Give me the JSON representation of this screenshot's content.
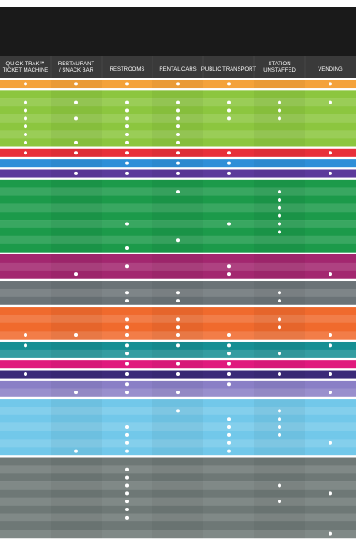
{
  "header": {
    "columns": [
      "QUICK-TRAK℠ TICKET MACHINE",
      "RESTAURANT / SNACK BAR",
      "RESTROOMS",
      "RENTAL CARS",
      "PUBLIC TRANSPORT",
      "STATION UNSTAFFED",
      "VENDING"
    ]
  },
  "table": {
    "groups": [
      {
        "color": "#f4a23a",
        "rows": [
          [
            true,
            true,
            true,
            true,
            true,
            false,
            true
          ]
        ]
      },
      {
        "color": "#8cc63f",
        "rows": [
          [
            false,
            false,
            false,
            false,
            false,
            false,
            false
          ],
          [
            true,
            true,
            true,
            true,
            true,
            true,
            true
          ],
          [
            true,
            false,
            true,
            true,
            true,
            true,
            false
          ],
          [
            true,
            true,
            true,
            true,
            true,
            true,
            false
          ],
          [
            true,
            false,
            true,
            true,
            false,
            false,
            false
          ],
          [
            true,
            false,
            true,
            true,
            false,
            false,
            false
          ],
          [
            true,
            true,
            true,
            true,
            false,
            false,
            false
          ]
        ]
      },
      {
        "color": "#e8303a",
        "rows": [
          [
            true,
            true,
            true,
            true,
            true,
            false,
            true
          ]
        ]
      },
      {
        "color": "#2e8fd8",
        "rows": [
          [
            false,
            false,
            true,
            true,
            true,
            false,
            false
          ]
        ]
      },
      {
        "color": "#5b3a9b",
        "rows": [
          [
            false,
            true,
            true,
            true,
            true,
            false,
            true
          ]
        ]
      },
      {
        "color": "#1c9a4a",
        "rows": [
          [
            false,
            false,
            false,
            false,
            false,
            false,
            false
          ],
          [
            false,
            false,
            false,
            true,
            false,
            true,
            false
          ],
          [
            false,
            false,
            false,
            false,
            false,
            true,
            false
          ],
          [
            false,
            false,
            false,
            false,
            false,
            true,
            false
          ],
          [
            false,
            false,
            false,
            false,
            false,
            true,
            false
          ],
          [
            false,
            false,
            true,
            false,
            true,
            true,
            false
          ],
          [
            false,
            false,
            false,
            false,
            false,
            true,
            false
          ],
          [
            false,
            false,
            false,
            true,
            false,
            false,
            false
          ],
          [
            false,
            false,
            true,
            false,
            false,
            false,
            false
          ]
        ]
      },
      {
        "color": "#a3276f",
        "rows": [
          [
            false,
            false,
            false,
            false,
            false,
            false,
            false
          ],
          [
            false,
            false,
            true,
            false,
            true,
            false,
            false
          ],
          [
            false,
            true,
            false,
            false,
            true,
            false,
            true
          ]
        ]
      },
      {
        "color": "#6b7377",
        "rows": [
          [
            false,
            false,
            false,
            false,
            false,
            false,
            false
          ],
          [
            false,
            false,
            true,
            true,
            false,
            true,
            false
          ],
          [
            false,
            false,
            true,
            true,
            false,
            true,
            false
          ]
        ]
      },
      {
        "color": "#f06a2d",
        "rows": [
          [
            false,
            false,
            false,
            false,
            false,
            false,
            false
          ],
          [
            false,
            false,
            true,
            true,
            false,
            true,
            false
          ],
          [
            false,
            false,
            true,
            true,
            false,
            true,
            false
          ],
          [
            true,
            true,
            true,
            true,
            true,
            false,
            true
          ]
        ]
      },
      {
        "color": "#168f93",
        "rows": [
          [
            true,
            false,
            true,
            true,
            true,
            false,
            true
          ],
          [
            false,
            false,
            true,
            false,
            true,
            true,
            false
          ]
        ]
      },
      {
        "color": "#e0197d",
        "rows": [
          [
            false,
            false,
            true,
            true,
            true,
            false,
            false
          ]
        ]
      },
      {
        "color": "#3b2a78",
        "rows": [
          [
            true,
            false,
            true,
            true,
            true,
            true,
            true
          ]
        ]
      },
      {
        "color": "#8a7fc6",
        "rows": [
          [
            false,
            false,
            true,
            false,
            true,
            false,
            false
          ],
          [
            false,
            true,
            true,
            true,
            false,
            false,
            true
          ]
        ]
      },
      {
        "color": "#72c8ea",
        "rows": [
          [
            false,
            false,
            false,
            false,
            false,
            false,
            false
          ],
          [
            false,
            false,
            false,
            true,
            false,
            true,
            false
          ],
          [
            false,
            false,
            false,
            false,
            true,
            true,
            false
          ],
          [
            false,
            false,
            true,
            false,
            true,
            true,
            false
          ],
          [
            false,
            false,
            true,
            false,
            true,
            true,
            false
          ],
          [
            false,
            false,
            true,
            false,
            true,
            false,
            true
          ],
          [
            false,
            true,
            true,
            false,
            true,
            false,
            false
          ]
        ]
      },
      {
        "color": "#6e7876",
        "rows": [
          [
            false,
            false,
            false,
            false,
            false,
            false,
            false
          ],
          [
            false,
            false,
            true,
            false,
            false,
            false,
            false
          ],
          [
            false,
            false,
            true,
            false,
            false,
            false,
            false
          ],
          [
            false,
            false,
            true,
            false,
            false,
            true,
            false
          ],
          [
            false,
            false,
            true,
            false,
            false,
            false,
            true
          ],
          [
            false,
            false,
            true,
            false,
            false,
            true,
            false
          ],
          [
            false,
            false,
            true,
            false,
            false,
            false,
            false
          ],
          [
            false,
            false,
            true,
            false,
            false,
            false,
            false
          ],
          [
            false,
            false,
            false,
            false,
            false,
            false,
            false
          ],
          [
            false,
            false,
            false,
            false,
            false,
            false,
            true
          ]
        ]
      }
    ]
  }
}
